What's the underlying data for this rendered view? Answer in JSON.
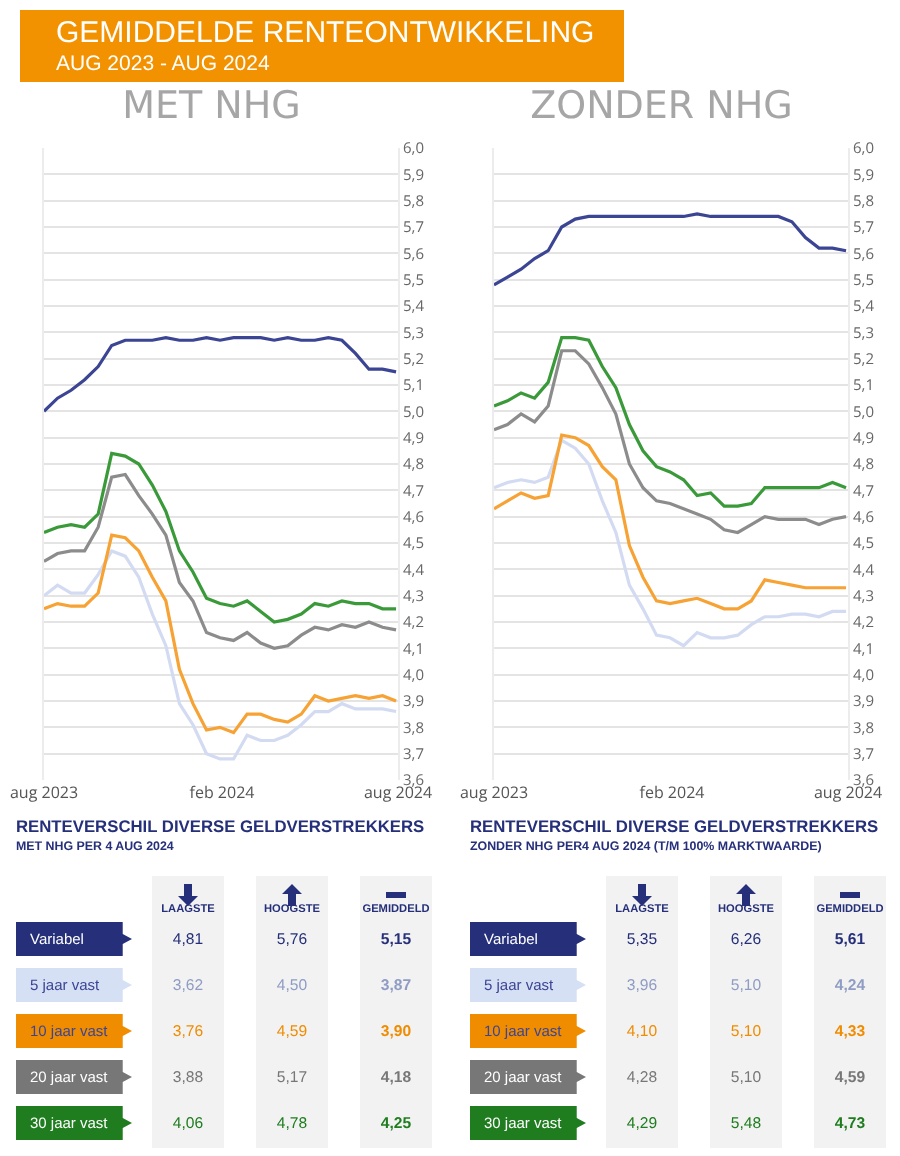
{
  "chart_data": [
    {
      "type": "other",
      "title": "GEMIDDELDE RENTEONTWIKKELING",
      "subtitle": "AUG 2023 - AUG 2024"
    },
    {
      "type": "line",
      "title": "MET NHG",
      "grid": "y",
      "x": [
        "2023-08-01",
        "2023-08-15",
        "2023-08-29",
        "2023-09-12",
        "2023-09-26",
        "2023-10-10",
        "2023-10-24",
        "2023-11-07",
        "2023-11-21",
        "2023-12-05",
        "2023-12-19",
        "2024-01-02",
        "2024-01-16",
        "2024-01-30",
        "2024-02-13",
        "2024-02-27",
        "2024-03-12",
        "2024-03-26",
        "2024-04-09",
        "2024-04-23",
        "2024-05-07",
        "2024-05-21",
        "2024-06-04",
        "2024-06-18",
        "2024-07-02",
        "2024-07-16",
        "2024-07-30"
      ],
      "xlim": [
        "2023-08-01",
        "2024-08-01"
      ],
      "xticks": [
        {
          "value": "2023-08-01",
          "label": "aug 2023"
        },
        {
          "value": "2024-02-01",
          "label": "feb 2024"
        },
        {
          "value": "2024-08-01",
          "label": "aug 2024"
        }
      ],
      "ylim": [
        3.6,
        6.0
      ],
      "yticks": [
        {
          "value": 3.6,
          "label": "3,6"
        },
        {
          "value": 3.7,
          "label": "3,7"
        },
        {
          "value": 3.8,
          "label": "3,8"
        },
        {
          "value": 3.9,
          "label": "3,9"
        },
        {
          "value": 4.0,
          "label": "4,0"
        },
        {
          "value": 4.1,
          "label": "4,1"
        },
        {
          "value": 4.2,
          "label": "4,2"
        },
        {
          "value": 4.3,
          "label": "4,3"
        },
        {
          "value": 4.4,
          "label": "4,4"
        },
        {
          "value": 4.5,
          "label": "4,5"
        },
        {
          "value": 4.6,
          "label": "4,6"
        },
        {
          "value": 4.7,
          "label": "4,7"
        },
        {
          "value": 4.8,
          "label": "4,8"
        },
        {
          "value": 4.9,
          "label": "4,9"
        },
        {
          "value": 5.0,
          "label": "5,0"
        },
        {
          "value": 5.1,
          "label": "5,1"
        },
        {
          "value": 5.2,
          "label": "5,2"
        },
        {
          "value": 5.3,
          "label": "5,3"
        },
        {
          "value": 5.4,
          "label": "5,4"
        },
        {
          "value": 5.5,
          "label": "5,5"
        },
        {
          "value": 5.6,
          "label": "5,6"
        },
        {
          "value": 5.7,
          "label": "5,7"
        },
        {
          "value": 5.8,
          "label": "5,8"
        },
        {
          "value": 5.9,
          "label": "5,9"
        },
        {
          "value": 6.0,
          "label": "6,0"
        }
      ],
      "series": [
        {
          "color": "#3b4593",
          "values": [
            5.0,
            5.05,
            5.08,
            5.12,
            5.17,
            5.25,
            5.27,
            5.27,
            5.27,
            5.28,
            5.27,
            5.27,
            5.28,
            5.27,
            5.28,
            5.28,
            5.28,
            5.27,
            5.28,
            5.27,
            5.27,
            5.28,
            5.27,
            5.22,
            5.16,
            5.16,
            5.15
          ]
        },
        {
          "color": "#d3dbf2",
          "values": [
            4.3,
            4.34,
            4.31,
            4.31,
            4.38,
            4.47,
            4.45,
            4.37,
            4.23,
            4.11,
            3.89,
            3.81,
            3.7,
            3.68,
            3.68,
            3.77,
            3.75,
            3.75,
            3.77,
            3.81,
            3.86,
            3.86,
            3.89,
            3.87,
            3.87,
            3.87,
            3.86
          ]
        },
        {
          "color": "#f7a234",
          "values": [
            4.25,
            4.27,
            4.26,
            4.26,
            4.31,
            4.53,
            4.52,
            4.47,
            4.37,
            4.28,
            4.02,
            3.89,
            3.79,
            3.8,
            3.78,
            3.85,
            3.85,
            3.83,
            3.82,
            3.85,
            3.92,
            3.9,
            3.91,
            3.92,
            3.91,
            3.92,
            3.9
          ]
        },
        {
          "color": "#8c8c8c",
          "values": [
            4.43,
            4.46,
            4.47,
            4.47,
            4.56,
            4.75,
            4.76,
            4.68,
            4.61,
            4.53,
            4.35,
            4.28,
            4.16,
            4.14,
            4.13,
            4.16,
            4.12,
            4.1,
            4.11,
            4.15,
            4.18,
            4.17,
            4.19,
            4.18,
            4.2,
            4.18,
            4.17
          ]
        },
        {
          "color": "#3a9a3a",
          "values": [
            4.54,
            4.56,
            4.57,
            4.56,
            4.61,
            4.84,
            4.83,
            4.8,
            4.72,
            4.62,
            4.47,
            4.39,
            4.29,
            4.27,
            4.26,
            4.28,
            4.24,
            4.2,
            4.21,
            4.23,
            4.27,
            4.26,
            4.28,
            4.27,
            4.27,
            4.25,
            4.25
          ]
        }
      ]
    },
    {
      "type": "line",
      "title": "ZONDER NHG",
      "grid": "y",
      "x": [
        "2023-08-01",
        "2023-08-15",
        "2023-08-29",
        "2023-09-12",
        "2023-09-26",
        "2023-10-10",
        "2023-10-24",
        "2023-11-07",
        "2023-11-21",
        "2023-12-05",
        "2023-12-19",
        "2024-01-02",
        "2024-01-16",
        "2024-01-30",
        "2024-02-13",
        "2024-02-27",
        "2024-03-12",
        "2024-03-26",
        "2024-04-09",
        "2024-04-23",
        "2024-05-07",
        "2024-05-21",
        "2024-06-04",
        "2024-06-18",
        "2024-07-02",
        "2024-07-16",
        "2024-07-30"
      ],
      "xlim": [
        "2023-08-01",
        "2024-08-01"
      ],
      "xticks": [
        {
          "value": "2023-08-01",
          "label": "aug 2023"
        },
        {
          "value": "2024-02-01",
          "label": "feb 2024"
        },
        {
          "value": "2024-08-01",
          "label": "aug 2024"
        }
      ],
      "ylim": [
        3.6,
        6.0
      ],
      "yticks": [
        {
          "value": 3.6,
          "label": "3,6"
        },
        {
          "value": 3.7,
          "label": "3,7"
        },
        {
          "value": 3.8,
          "label": "3,8"
        },
        {
          "value": 3.9,
          "label": "3,9"
        },
        {
          "value": 4.0,
          "label": "4,0"
        },
        {
          "value": 4.1,
          "label": "4,1"
        },
        {
          "value": 4.2,
          "label": "4,2"
        },
        {
          "value": 4.3,
          "label": "4,3"
        },
        {
          "value": 4.4,
          "label": "4,4"
        },
        {
          "value": 4.5,
          "label": "4,5"
        },
        {
          "value": 4.6,
          "label": "4,6"
        },
        {
          "value": 4.7,
          "label": "4,7"
        },
        {
          "value": 4.8,
          "label": "4,8"
        },
        {
          "value": 4.9,
          "label": "4,9"
        },
        {
          "value": 5.0,
          "label": "5,0"
        },
        {
          "value": 5.1,
          "label": "5,1"
        },
        {
          "value": 5.2,
          "label": "5,2"
        },
        {
          "value": 5.3,
          "label": "5,3"
        },
        {
          "value": 5.4,
          "label": "5,4"
        },
        {
          "value": 5.5,
          "label": "5,5"
        },
        {
          "value": 5.6,
          "label": "5,6"
        },
        {
          "value": 5.7,
          "label": "5,7"
        },
        {
          "value": 5.8,
          "label": "5,8"
        },
        {
          "value": 5.9,
          "label": "5,9"
        },
        {
          "value": 6.0,
          "label": "6,0"
        }
      ],
      "series": [
        {
          "color": "#3b4593",
          "values": [
            5.48,
            5.51,
            5.54,
            5.58,
            5.61,
            5.7,
            5.73,
            5.74,
            5.74,
            5.74,
            5.74,
            5.74,
            5.74,
            5.74,
            5.74,
            5.75,
            5.74,
            5.74,
            5.74,
            5.74,
            5.74,
            5.74,
            5.72,
            5.66,
            5.62,
            5.62,
            5.61
          ]
        },
        {
          "color": "#d3dbf2",
          "values": [
            4.71,
            4.73,
            4.74,
            4.73,
            4.75,
            4.89,
            4.86,
            4.8,
            4.66,
            4.54,
            4.34,
            4.25,
            4.15,
            4.14,
            4.11,
            4.16,
            4.14,
            4.14,
            4.15,
            4.19,
            4.22,
            4.22,
            4.23,
            4.23,
            4.22,
            4.24,
            4.24
          ]
        },
        {
          "color": "#f7a234",
          "values": [
            4.63,
            4.66,
            4.69,
            4.67,
            4.68,
            4.91,
            4.9,
            4.87,
            4.79,
            4.74,
            4.49,
            4.37,
            4.28,
            4.27,
            4.28,
            4.29,
            4.27,
            4.25,
            4.25,
            4.28,
            4.36,
            4.35,
            4.34,
            4.33,
            4.33,
            4.33,
            4.33
          ]
        },
        {
          "color": "#8c8c8c",
          "values": [
            4.93,
            4.95,
            4.99,
            4.96,
            5.02,
            5.23,
            5.23,
            5.18,
            5.09,
            4.99,
            4.8,
            4.71,
            4.66,
            4.65,
            4.63,
            4.61,
            4.59,
            4.55,
            4.54,
            4.57,
            4.6,
            4.59,
            4.59,
            4.59,
            4.57,
            4.59,
            4.6
          ]
        },
        {
          "color": "#3a9a3a",
          "values": [
            5.02,
            5.04,
            5.07,
            5.05,
            5.11,
            5.28,
            5.28,
            5.27,
            5.17,
            5.09,
            4.95,
            4.85,
            4.79,
            4.77,
            4.74,
            4.68,
            4.69,
            4.64,
            4.64,
            4.65,
            4.71,
            4.71,
            4.71,
            4.71,
            4.71,
            4.73,
            4.71
          ]
        }
      ]
    },
    {
      "type": "other",
      "title": "RENTEVERSCHIL DIVERSE GELDVERSTREKKERS",
      "subtitle": "MET NHG PER 4 AUG 2024",
      "categories": [
        "Variabel",
        "5 jaar vast",
        "10 jaar vast",
        "20 jaar vast",
        "30 jaar vast"
      ],
      "colors": [
        "#26307a",
        "#d6e0f5",
        "#f08c00",
        "#777777",
        "#1f7d1f"
      ],
      "data_labels": true,
      "series": [
        {
          "name": "LAAGSTE",
          "values": [
            4.81,
            3.62,
            3.76,
            3.88,
            4.06
          ],
          "value_labels": [
            "4,81",
            "3,62",
            "3,76",
            "3,88",
            "4,06"
          ]
        },
        {
          "name": "HOOGSTE",
          "values": [
            5.76,
            4.5,
            4.59,
            5.17,
            4.78
          ],
          "value_labels": [
            "5,76",
            "4,50",
            "4,59",
            "5,17",
            "4,78"
          ]
        },
        {
          "name": "GEMIDDELD",
          "values": [
            5.15,
            3.87,
            3.9,
            4.18,
            4.25
          ],
          "value_labels": [
            "5,15",
            "3,87",
            "3,90",
            "4,18",
            "4,25"
          ]
        }
      ]
    },
    {
      "type": "other",
      "title": "RENTEVERSCHIL DIVERSE GELDVERSTREKKERS",
      "subtitle": "ZONDER NHG PER4 AUG 2024 (T/M 100% MARKTWAARDE)",
      "categories": [
        "Variabel",
        "5 jaar vast",
        "10 jaar vast",
        "20 jaar vast",
        "30 jaar vast"
      ],
      "colors": [
        "#26307a",
        "#d6e0f5",
        "#f08c00",
        "#777777",
        "#1f7d1f"
      ],
      "data_labels": true,
      "series": [
        {
          "name": "LAAGSTE",
          "values": [
            5.35,
            3.96,
            4.1,
            4.28,
            4.29
          ],
          "value_labels": [
            "5,35",
            "3,96",
            "4,10",
            "4,28",
            "4,29"
          ]
        },
        {
          "name": "HOOGSTE",
          "values": [
            6.26,
            5.1,
            5.1,
            5.1,
            5.48
          ],
          "value_labels": [
            "6,26",
            "5,10",
            "5,10",
            "5,10",
            "5,48"
          ]
        },
        {
          "name": "GEMIDDELD",
          "values": [
            5.61,
            4.24,
            4.33,
            4.59,
            4.73
          ],
          "value_labels": [
            "5,61",
            "4,24",
            "4,33",
            "4,59",
            "4,73"
          ]
        }
      ]
    }
  ]
}
